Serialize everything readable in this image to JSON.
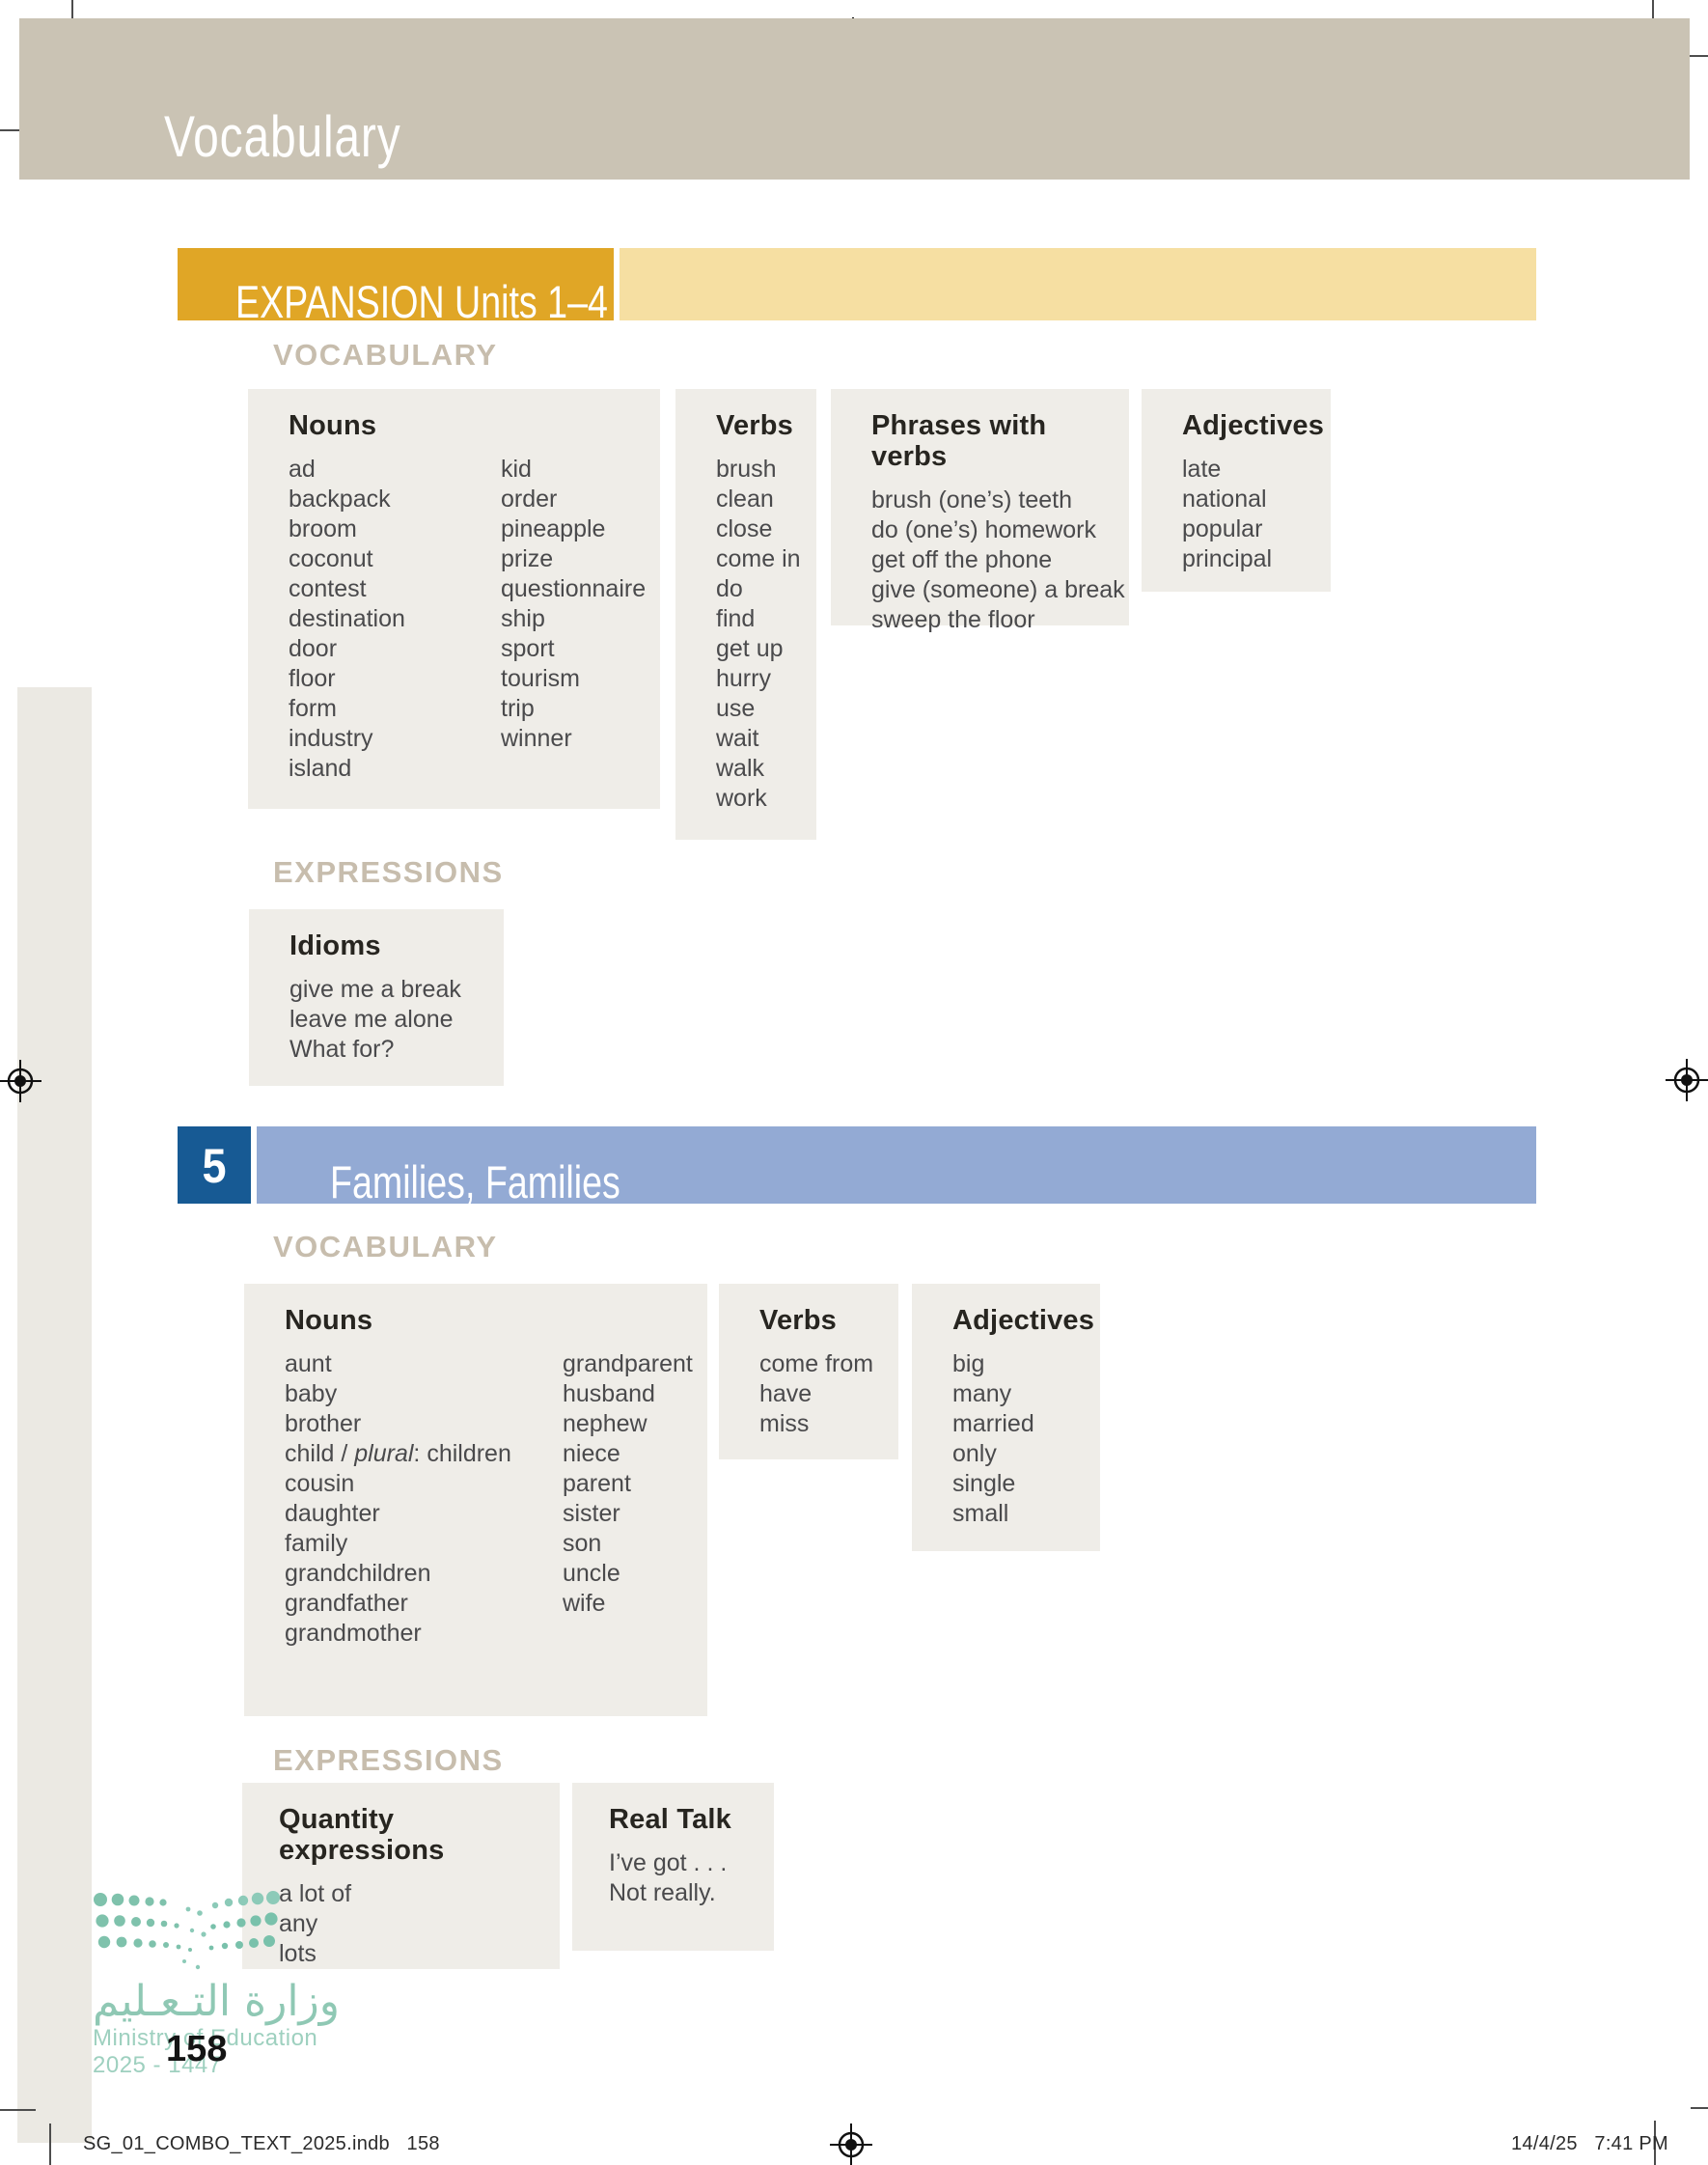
{
  "colors": {
    "tan": "#cac3b4",
    "gold": "#e0a626",
    "gold_light": "#f6dfa2",
    "blue_dark": "#175a94",
    "blue_light": "#93aad4",
    "heading_tan": "#c7bdad",
    "box_bg": "#efede8",
    "teal": "#8fc8b4"
  },
  "page": {
    "banner_title": "Vocabulary"
  },
  "expansion": {
    "banner_title": "EXPANSION Units 1–4",
    "vocabulary_heading": "VOCABULARY",
    "expressions_heading": "EXPRESSIONS",
    "boxes": {
      "nouns": {
        "title": "Nouns",
        "col1": [
          "ad",
          "backpack",
          "broom",
          "coconut",
          "contest",
          "destination",
          "door",
          "floor",
          "form",
          "industry",
          "island"
        ],
        "col2": [
          "kid",
          "order",
          "pineapple",
          "prize",
          "questionnaire",
          "ship",
          "sport",
          "tourism",
          "trip",
          "winner"
        ]
      },
      "verbs": {
        "title": "Verbs",
        "items": [
          "brush",
          "clean",
          "close",
          "come in",
          "do",
          "find",
          "get up",
          "hurry",
          "use",
          "wait",
          "walk",
          "work"
        ]
      },
      "phrases": {
        "title": "Phrases with verbs",
        "items": [
          "brush (one’s) teeth",
          "do (one’s) homework",
          "get off the phone",
          "give (someone) a break",
          "sweep the floor"
        ]
      },
      "adjectives": {
        "title": "Adjectives",
        "items": [
          "late",
          "national",
          "popular",
          "principal"
        ]
      }
    },
    "idioms": {
      "title": "Idioms",
      "items": [
        "give me a break",
        "leave me alone",
        "What for?"
      ]
    }
  },
  "unit5": {
    "number": "5",
    "title": "Families, Families",
    "vocabulary_heading": "VOCABULARY",
    "expressions_heading": "EXPRESSIONS",
    "boxes": {
      "nouns": {
        "title": "Nouns",
        "col1": [
          "aunt",
          "baby",
          "brother",
          {
            "parts": [
              {
                "t": "child / "
              },
              {
                "t": "plural",
                "i": true
              },
              {
                "t": ": children"
              }
            ]
          },
          "cousin",
          "daughter",
          "family",
          "grandchildren",
          "grandfather",
          "grandmother"
        ],
        "col2": [
          "grandparent",
          "husband",
          "nephew",
          "niece",
          "parent",
          "sister",
          "son",
          "uncle",
          "wife"
        ]
      },
      "verbs": {
        "title": "Verbs",
        "items": [
          "come from",
          "have",
          "miss"
        ]
      },
      "adjectives": {
        "title": "Adjectives",
        "items": [
          "big",
          "many",
          "married",
          "only",
          "single",
          "small"
        ]
      }
    },
    "quantity": {
      "title": "Quantity expressions",
      "items": [
        "a lot of",
        "any",
        "lots"
      ]
    },
    "real_talk": {
      "title": "Real Talk",
      "items": [
        "I’ve got . . .",
        "Not really."
      ]
    }
  },
  "footer": {
    "logo_arabic": "وزارة التـعـليم",
    "logo_english": "Ministry of Education",
    "logo_years": "2025 - 1447",
    "page_number": "158",
    "print_file_line": "SG_01_COMBO_TEXT_2025.indb   158",
    "print_date_line": "14/4/25   7:41 PM"
  }
}
